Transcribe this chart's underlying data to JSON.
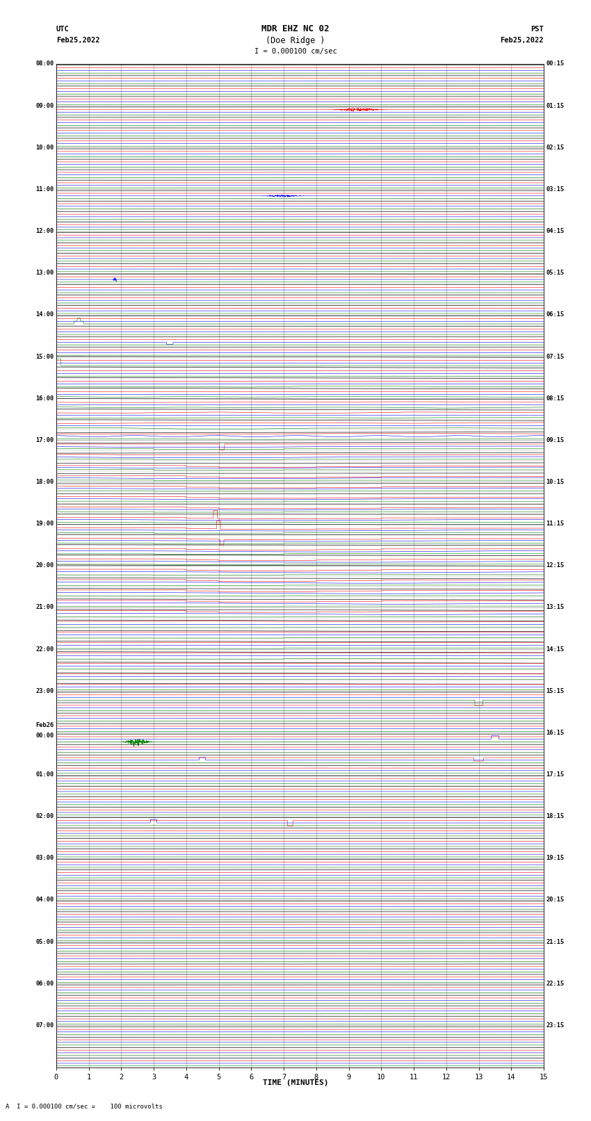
{
  "title_line1": "MDR EHZ NC 02",
  "title_line2": "(Doe Ridge )",
  "scale_label": "I = 0.000100 cm/sec",
  "left_label_top": "UTC",
  "left_label_date": "Feb25,2022",
  "right_label_top": "PST",
  "right_label_date": "Feb25,2022",
  "bottom_label": "TIME (MINUTES)",
  "bottom_note": "A  I = 0.000100 cm/sec =    100 microvolts",
  "utc_times_labeled": [
    "08:00",
    "09:00",
    "10:00",
    "11:00",
    "12:00",
    "13:00",
    "14:00",
    "15:00",
    "16:00",
    "17:00",
    "18:00",
    "19:00",
    "20:00",
    "21:00",
    "22:00",
    "23:00",
    "Feb26\n00:00",
    "01:00",
    "02:00",
    "03:00",
    "04:00",
    "05:00",
    "06:00",
    "07:00"
  ],
  "utc_label_rows": [
    0,
    4,
    8,
    12,
    16,
    20,
    24,
    28,
    32,
    36,
    40,
    44,
    48,
    52,
    56,
    60,
    64,
    68,
    72,
    76,
    80,
    84,
    88,
    92
  ],
  "pst_times_labeled": [
    "00:15",
    "01:15",
    "02:15",
    "03:15",
    "04:15",
    "05:15",
    "06:15",
    "07:15",
    "08:15",
    "09:15",
    "10:15",
    "11:15",
    "12:15",
    "13:15",
    "14:15",
    "15:15",
    "16:15",
    "17:15",
    "18:15",
    "19:15",
    "20:15",
    "21:15",
    "22:15",
    "23:15"
  ],
  "pst_label_rows": [
    0,
    4,
    8,
    12,
    16,
    20,
    24,
    28,
    32,
    36,
    40,
    44,
    48,
    52,
    56,
    60,
    64,
    68,
    72,
    76,
    80,
    84,
    88,
    92
  ],
  "num_rows": 96,
  "x_min": 0,
  "x_max": 15,
  "x_ticks": [
    0,
    1,
    2,
    3,
    4,
    5,
    6,
    7,
    8,
    9,
    10,
    11,
    12,
    13,
    14,
    15
  ],
  "bg_color": "white",
  "grid_color": "#aaaaaa",
  "line_colors": [
    "black",
    "red",
    "blue",
    "green"
  ],
  "noise_amp": 0.06,
  "seed": 42
}
